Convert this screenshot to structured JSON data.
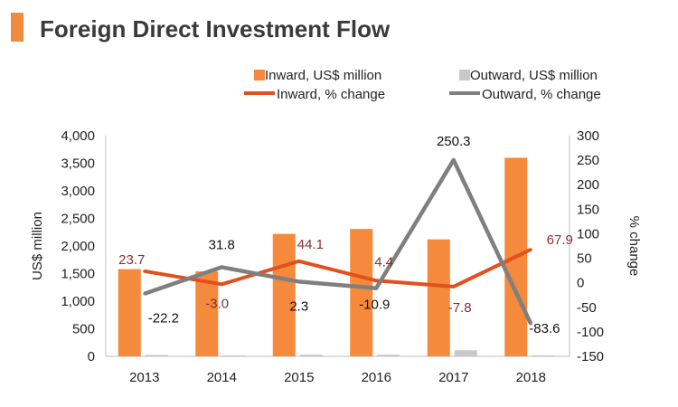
{
  "colors": {
    "title_bar": "#F08A3C",
    "inward_bar": "#F58A3C",
    "outward_bar": "#C8C8C8",
    "inward_line": "#E2501D",
    "outward_line": "#7F7F7F",
    "inward_label": "#8B2D2D",
    "outward_label": "#111111",
    "axis_text": "#222222"
  },
  "chart_data": {
    "type": "bar",
    "title": "Foreign Direct Investment Flow",
    "xlabel": "",
    "ylabel": "US$ million",
    "y2label": "% change",
    "categories": [
      "2013",
      "2014",
      "2015",
      "2016",
      "2017",
      "2018"
    ],
    "ylim": [
      0,
      4000
    ],
    "y_ticks": [
      "0",
      "500",
      "1,000",
      "1,500",
      "2,000",
      "2,500",
      "3,000",
      "3,500",
      "4,000"
    ],
    "y2lim": [
      -150,
      300
    ],
    "y2_ticks": [
      "-150",
      "-100",
      "-50",
      "0",
      "50",
      "100",
      "150",
      "200",
      "250",
      "300"
    ],
    "series": [
      {
        "name": "Inward, US$ million",
        "type": "bar",
        "axis": "left",
        "values": [
          1580,
          1540,
          2220,
          2310,
          2120,
          3600
        ]
      },
      {
        "name": "Outward, US$ million",
        "type": "bar",
        "axis": "left",
        "values": [
          25,
          20,
          30,
          30,
          110,
          20
        ]
      },
      {
        "name": "Inward, % change",
        "type": "line",
        "axis": "right",
        "values": [
          23.7,
          -3.0,
          44.1,
          4.4,
          -7.8,
          67.9
        ],
        "labels": [
          "23.7",
          "-3.0",
          "44.1",
          "4.4",
          "-7.8",
          "67.9"
        ]
      },
      {
        "name": "Outward, % change",
        "type": "line",
        "axis": "right",
        "values": [
          -22.2,
          31.8,
          2.3,
          -10.9,
          250.3,
          -83.6
        ],
        "labels": [
          "-22.2",
          "31.8",
          "2.3",
          "-10.9",
          "250.3",
          "-83.6"
        ]
      }
    ],
    "legend": [
      "Inward, US$ million",
      "Outward, US$ million",
      "Inward, % change",
      "Outward, % change"
    ],
    "legend_position": "top",
    "grid": false
  }
}
